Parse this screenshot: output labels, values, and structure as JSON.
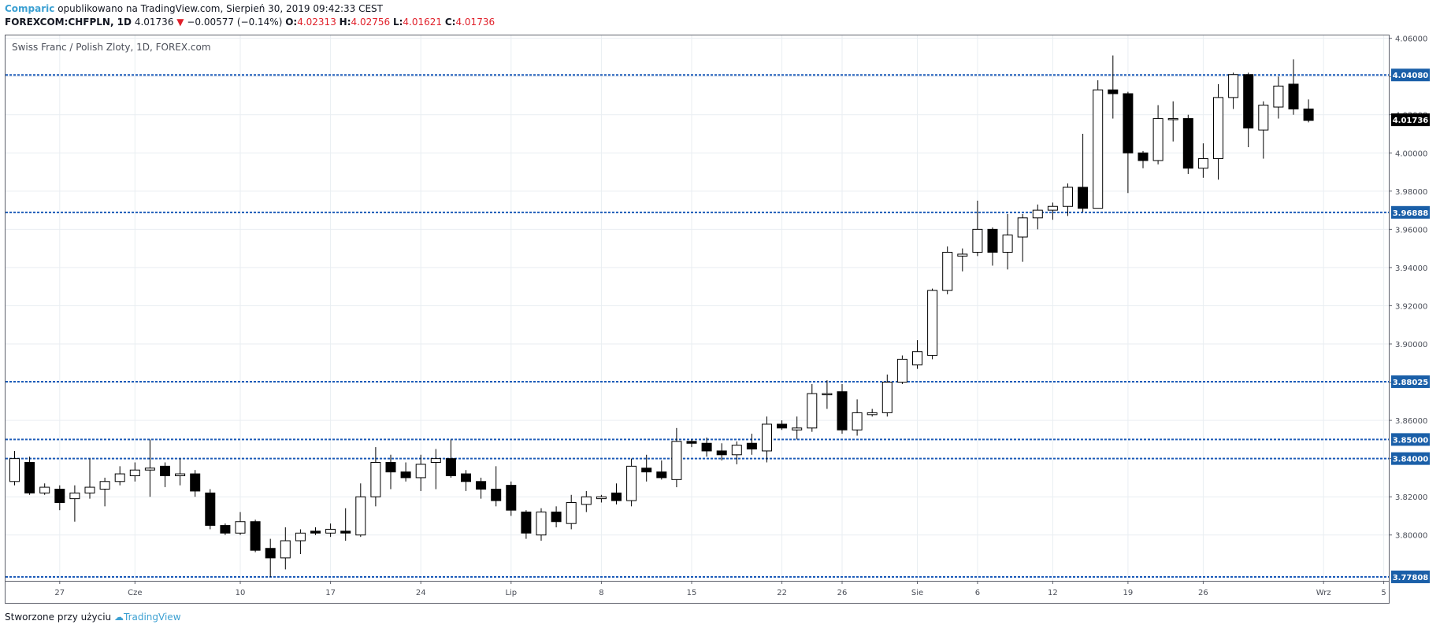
{
  "header": {
    "author": "Comparic",
    "published": "opublikowano na TradingView.com, Sierpień 30, 2019 09:42:33 CEST"
  },
  "ohlc_bar": {
    "symbol": "FOREXCOM:CHFPLN, 1D",
    "last": "4.01736",
    "change_arrow": "▼",
    "change": "−0.00577 (−0.14%)",
    "o_label": "O:",
    "o": "4.02313",
    "h_label": "H:",
    "h": "4.02756",
    "l_label": "L:",
    "l": "4.01621",
    "c_label": "C:",
    "c": "4.01736"
  },
  "footer": {
    "text": "Stworzone przy użyciu",
    "brand": "TradingView"
  },
  "colors": {
    "up_fill": "#ffffff",
    "down_fill": "#000000",
    "wick": "#000000",
    "level_line": "#1c5bb8",
    "level_label_bg": "#1a5fa8",
    "last_label_bg": "#000000",
    "grid": "#e9eef2",
    "negative": "#e0202a"
  },
  "chart_data": {
    "type": "candlestick",
    "title": "Swiss Franc / Polish Zloty, 1D, FOREX.com",
    "ylim": [
      3.776,
      4.0615
    ],
    "y_ticks": [
      4.06,
      4.04,
      4.02,
      4.0,
      3.98,
      3.96,
      3.94,
      3.92,
      3.9,
      3.88,
      3.86,
      3.84,
      3.82,
      3.8
    ],
    "y_tick_labels": [
      "4.06000",
      "4.04000",
      "4.02000",
      "4.00000",
      "3.98000",
      "3.96000",
      "3.94000",
      "3.92000",
      "3.90000",
      "3.88000",
      "3.86000",
      "3.84000",
      "3.82000",
      "3.80000"
    ],
    "x_ticks": [
      {
        "label": "27",
        "i": 3
      },
      {
        "label": "Cze",
        "i": 8
      },
      {
        "label": "10",
        "i": 15
      },
      {
        "label": "17",
        "i": 21
      },
      {
        "label": "24",
        "i": 27
      },
      {
        "label": "Lip",
        "i": 33
      },
      {
        "label": "8",
        "i": 39
      },
      {
        "label": "15",
        "i": 45
      },
      {
        "label": "22",
        "i": 51
      },
      {
        "label": "26",
        "i": 55
      },
      {
        "label": "Sie",
        "i": 60
      },
      {
        "label": "6",
        "i": 64
      },
      {
        "label": "12",
        "i": 69
      },
      {
        "label": "19",
        "i": 74
      },
      {
        "label": "26",
        "i": 79
      },
      {
        "label": "Wrz",
        "i": 87
      },
      {
        "label": "5",
        "i": 91
      }
    ],
    "levels": [
      {
        "value": 4.0408,
        "label": "4.04080"
      },
      {
        "value": 3.96888,
        "label": "3.96888"
      },
      {
        "value": 3.88025,
        "label": "3.88025"
      },
      {
        "value": 3.85,
        "label": "3.85000"
      },
      {
        "value": 3.84,
        "label": "3.84000"
      },
      {
        "value": 3.77808,
        "label": "3.77808"
      }
    ],
    "last_price": {
      "value": 4.01736,
      "label": "4.01736"
    },
    "candles": [
      [
        3.828,
        3.84,
        3.844,
        3.826
      ],
      [
        3.838,
        3.822,
        3.841,
        3.821
      ],
      [
        3.822,
        3.825,
        3.827,
        3.821
      ],
      [
        3.824,
        3.817,
        3.826,
        3.813
      ],
      [
        3.819,
        3.822,
        3.826,
        3.807
      ],
      [
        3.822,
        3.825,
        3.84,
        3.819
      ],
      [
        3.824,
        3.828,
        3.83,
        3.815
      ],
      [
        3.828,
        3.832,
        3.836,
        3.826
      ],
      [
        3.831,
        3.834,
        3.838,
        3.828
      ],
      [
        3.834,
        3.835,
        3.85,
        3.82
      ],
      [
        3.836,
        3.831,
        3.838,
        3.825
      ],
      [
        3.831,
        3.832,
        3.84,
        3.826
      ],
      [
        3.832,
        3.823,
        3.834,
        3.82
      ],
      [
        3.822,
        3.805,
        3.824,
        3.803
      ],
      [
        3.805,
        3.801,
        3.806,
        3.8
      ],
      [
        3.801,
        3.807,
        3.812,
        3.8
      ],
      [
        3.807,
        3.792,
        3.808,
        3.791
      ],
      [
        3.793,
        3.788,
        3.798,
        3.778
      ],
      [
        3.788,
        3.797,
        3.804,
        3.782
      ],
      [
        3.797,
        3.801,
        3.803,
        3.79
      ],
      [
        3.802,
        3.801,
        3.804,
        3.8
      ],
      [
        3.801,
        3.803,
        3.806,
        3.799
      ],
      [
        3.802,
        3.801,
        3.814,
        3.797
      ],
      [
        3.8,
        3.82,
        3.827,
        3.799
      ],
      [
        3.82,
        3.838,
        3.846,
        3.815
      ],
      [
        3.838,
        3.833,
        3.842,
        3.824
      ],
      [
        3.833,
        3.83,
        3.838,
        3.828
      ],
      [
        3.83,
        3.837,
        3.842,
        3.823
      ],
      [
        3.838,
        3.84,
        3.845,
        3.824
      ],
      [
        3.84,
        3.831,
        3.85,
        3.83
      ],
      [
        3.832,
        3.828,
        3.834,
        3.823
      ],
      [
        3.828,
        3.824,
        3.83,
        3.819
      ],
      [
        3.824,
        3.818,
        3.836,
        3.815
      ],
      [
        3.826,
        3.813,
        3.828,
        3.81
      ],
      [
        3.812,
        3.801,
        3.813,
        3.798
      ],
      [
        3.8,
        3.812,
        3.814,
        3.797
      ],
      [
        3.812,
        3.807,
        3.815,
        3.804
      ],
      [
        3.806,
        3.817,
        3.821,
        3.803
      ],
      [
        3.816,
        3.82,
        3.823,
        3.812
      ],
      [
        3.819,
        3.82,
        3.821,
        3.817
      ],
      [
        3.822,
        3.818,
        3.827,
        3.816
      ],
      [
        3.818,
        3.836,
        3.84,
        3.815
      ],
      [
        3.835,
        3.833,
        3.842,
        3.828
      ],
      [
        3.833,
        3.83,
        3.839,
        3.829
      ],
      [
        3.829,
        3.849,
        3.856,
        3.825
      ],
      [
        3.849,
        3.848,
        3.85,
        3.846
      ],
      [
        3.848,
        3.844,
        3.851,
        3.841
      ],
      [
        3.844,
        3.842,
        3.848,
        3.839
      ],
      [
        3.842,
        3.847,
        3.849,
        3.837
      ],
      [
        3.848,
        3.845,
        3.853,
        3.842
      ],
      [
        3.844,
        3.858,
        3.862,
        3.838
      ],
      [
        3.858,
        3.856,
        3.86,
        3.855
      ],
      [
        3.855,
        3.856,
        3.862,
        3.85
      ],
      [
        3.856,
        3.874,
        3.879,
        3.854
      ],
      [
        3.874,
        3.874,
        3.881,
        3.866
      ],
      [
        3.875,
        3.855,
        3.879,
        3.853
      ],
      [
        3.855,
        3.864,
        3.871,
        3.852
      ],
      [
        3.863,
        3.864,
        3.866,
        3.862
      ],
      [
        3.864,
        3.88,
        3.884,
        3.862
      ],
      [
        3.88,
        3.892,
        3.894,
        3.879
      ],
      [
        3.889,
        3.896,
        3.902,
        3.887
      ],
      [
        3.894,
        3.928,
        3.929,
        3.892
      ],
      [
        3.928,
        3.948,
        3.951,
        3.926
      ],
      [
        3.946,
        3.947,
        3.95,
        3.938
      ],
      [
        3.948,
        3.96,
        3.975,
        3.946
      ],
      [
        3.96,
        3.948,
        3.961,
        3.941
      ],
      [
        3.948,
        3.957,
        3.968,
        3.939
      ],
      [
        3.956,
        3.966,
        3.968,
        3.943
      ],
      [
        3.966,
        3.97,
        3.973,
        3.96
      ],
      [
        3.97,
        3.972,
        3.974,
        3.965
      ],
      [
        3.972,
        3.982,
        3.984,
        3.967
      ],
      [
        3.982,
        3.971,
        4.01,
        3.969
      ],
      [
        3.971,
        4.033,
        4.038,
        3.971
      ],
      [
        4.033,
        4.031,
        4.051,
        4.018
      ],
      [
        4.031,
        4.0,
        4.032,
        3.979
      ],
      [
        4.0,
        3.996,
        4.001,
        3.992
      ],
      [
        3.996,
        4.018,
        4.025,
        3.994
      ],
      [
        4.018,
        4.018,
        4.027,
        4.006
      ],
      [
        4.018,
        3.992,
        4.02,
        3.989
      ],
      [
        3.992,
        3.997,
        4.005,
        3.987
      ],
      [
        3.997,
        4.029,
        4.036,
        3.986
      ],
      [
        4.029,
        4.041,
        4.042,
        4.023
      ],
      [
        4.041,
        4.013,
        4.042,
        4.003
      ],
      [
        4.012,
        4.025,
        4.027,
        3.997
      ],
      [
        4.024,
        4.035,
        4.04,
        4.018
      ],
      [
        4.036,
        4.023,
        4.049,
        4.02
      ],
      [
        4.023,
        4.017,
        4.028,
        4.016
      ]
    ]
  }
}
